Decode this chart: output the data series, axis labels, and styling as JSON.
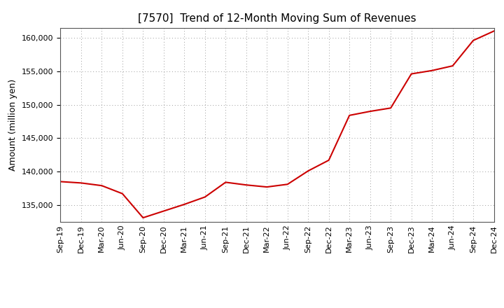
{
  "title": "[7570]  Trend of 12-Month Moving Sum of Revenues",
  "ylabel": "Amount (million yen)",
  "line_color": "#cc0000",
  "background_color": "#ffffff",
  "plot_bg_color": "#ffffff",
  "grid_color": "#999999",
  "ylim": [
    132500,
    161500
  ],
  "yticks": [
    135000,
    140000,
    145000,
    150000,
    155000,
    160000
  ],
  "x_labels": [
    "Sep-19",
    "Dec-19",
    "Mar-20",
    "Jun-20",
    "Sep-20",
    "Dec-20",
    "Mar-21",
    "Jun-21",
    "Sep-21",
    "Dec-21",
    "Mar-22",
    "Jun-22",
    "Sep-22",
    "Dec-22",
    "Mar-23",
    "Jun-23",
    "Sep-23",
    "Dec-23",
    "Mar-24",
    "Jun-24",
    "Sep-24",
    "Dec-24"
  ],
  "values": [
    138500,
    138300,
    137900,
    136700,
    133100,
    134100,
    135100,
    136200,
    138400,
    138000,
    137700,
    138100,
    140100,
    141700,
    148400,
    149000,
    149500,
    154600,
    155100,
    155800,
    159600,
    161000
  ],
  "title_fontsize": 11,
  "axis_label_fontsize": 9,
  "tick_fontsize": 8
}
